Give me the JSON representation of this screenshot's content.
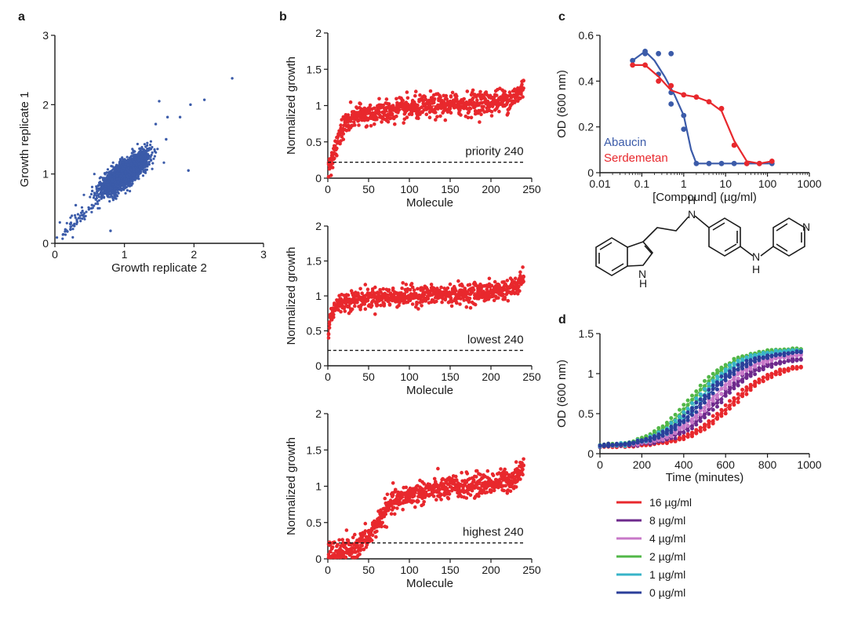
{
  "panels": {
    "a": {
      "letter": "a"
    },
    "b": {
      "letter": "b"
    },
    "c": {
      "letter": "c"
    },
    "d": {
      "letter": "d"
    }
  },
  "colors": {
    "blue": "#3b5ba9",
    "red": "#e8282d",
    "purple": "#6e2a8c",
    "pink": "#c878c8",
    "green": "#52b748",
    "cyan": "#38b4c8",
    "navy": "#2b3f9a"
  },
  "chart_data": [
    {
      "id": "a",
      "type": "scatter",
      "xlabel": "Growth replicate 2",
      "ylabel": "Growth replicate 1",
      "xlim": [
        0,
        3
      ],
      "ylim": [
        0,
        3
      ],
      "xticks": [
        "0",
        "1",
        "2",
        "3"
      ],
      "yticks": [
        "0",
        "1",
        "2",
        "3"
      ],
      "cluster": {
        "center": [
          1.0,
          1.0
        ],
        "spread": 0.14,
        "n": 2600
      },
      "outliers": [
        [
          2.55,
          2.38
        ],
        [
          2.15,
          2.07
        ],
        [
          1.95,
          2.0
        ],
        [
          1.92,
          1.05
        ],
        [
          1.8,
          1.82
        ],
        [
          1.5,
          2.05
        ],
        [
          1.62,
          1.82
        ],
        [
          0.12,
          0.13
        ],
        [
          0.18,
          0.17
        ],
        [
          0.22,
          0.28
        ],
        [
          0.15,
          0.2
        ],
        [
          0.8,
          0.18
        ],
        [
          0.3,
          0.55
        ],
        [
          0.28,
          0.25
        ],
        [
          1.6,
          1.5
        ],
        [
          1.45,
          1.72
        ]
      ],
      "color": "#3b5ba9"
    },
    {
      "id": "b1",
      "type": "scatter",
      "xlabel": "Molecule",
      "ylabel": "Normalized growth",
      "xlim": [
        0,
        250
      ],
      "ylim": [
        0,
        2
      ],
      "xticks": [
        "0",
        "50",
        "100",
        "150",
        "200",
        "250"
      ],
      "yticks": [
        "0",
        "0.5",
        "1",
        "1.5",
        "2"
      ],
      "threshold": 0.22,
      "label": "priority 240",
      "curve": {
        "x": [
          0,
          5,
          10,
          15,
          20,
          25,
          30,
          40,
          50,
          75,
          100,
          125,
          150,
          175,
          200,
          220,
          235,
          240
        ],
        "y": [
          0.1,
          0.2,
          0.45,
          0.62,
          0.72,
          0.78,
          0.82,
          0.86,
          0.88,
          0.92,
          0.96,
          0.99,
          1.01,
          1.03,
          1.05,
          1.08,
          1.15,
          1.3
        ]
      },
      "n_per_x": 3,
      "noise": 0.08,
      "color": "#e8282d"
    },
    {
      "id": "b2",
      "type": "scatter",
      "xlabel": "Molecule",
      "ylabel": "Normalized growth",
      "xlim": [
        0,
        250
      ],
      "ylim": [
        0,
        2
      ],
      "xticks": [
        "0",
        "50",
        "100",
        "150",
        "200",
        "250"
      ],
      "yticks": [
        "0",
        "0.5",
        "1",
        "1.5",
        "2"
      ],
      "threshold": 0.22,
      "label": "lowest 240",
      "curve": {
        "x": [
          0,
          2,
          5,
          10,
          20,
          50,
          100,
          150,
          200,
          230,
          240
        ],
        "y": [
          0.3,
          0.6,
          0.78,
          0.86,
          0.92,
          0.97,
          1.0,
          1.02,
          1.06,
          1.12,
          1.25
        ]
      },
      "n_per_x": 3,
      "noise": 0.07,
      "color": "#e8282d"
    },
    {
      "id": "b3",
      "type": "scatter",
      "xlabel": "Molecule",
      "ylabel": "Normalized growth",
      "xlim": [
        0,
        250
      ],
      "ylim": [
        0,
        2
      ],
      "xticks": [
        "0",
        "50",
        "100",
        "150",
        "200",
        "250"
      ],
      "yticks": [
        "0",
        "0.5",
        "1",
        "1.5",
        "2"
      ],
      "threshold": 0.22,
      "label": "highest 240",
      "curve": {
        "x": [
          0,
          20,
          30,
          40,
          50,
          60,
          70,
          80,
          100,
          125,
          150,
          175,
          200,
          225,
          240
        ],
        "y": [
          0.08,
          0.1,
          0.13,
          0.2,
          0.3,
          0.48,
          0.65,
          0.78,
          0.88,
          0.94,
          0.98,
          1.01,
          1.04,
          1.09,
          1.25
        ]
      },
      "n_per_x": 3,
      "noise": 0.08,
      "color": "#e8282d"
    },
    {
      "id": "c",
      "type": "line",
      "xscale": "log",
      "xlabel": "[Compound] (µg/ml)",
      "ylabel": "OD (600 nm)",
      "xlim": [
        0.01,
        1000
      ],
      "ylim": [
        0,
        0.6
      ],
      "xticks": [
        "0.01",
        "0.1",
        "1",
        "10",
        "100",
        "1000"
      ],
      "yticks": [
        "0",
        "0.2",
        "0.4",
        "0.6"
      ],
      "series": [
        {
          "name": "Abaucin",
          "color": "#3b5ba9",
          "points": [
            [
              0.06,
              0.49
            ],
            [
              0.12,
              0.53
            ],
            [
              0.12,
              0.52
            ],
            [
              0.25,
              0.52
            ],
            [
              0.5,
              0.52
            ],
            [
              0.25,
              0.43
            ],
            [
              0.5,
              0.35
            ],
            [
              0.5,
              0.3
            ],
            [
              1.0,
              0.25
            ],
            [
              1.0,
              0.19
            ],
            [
              2.0,
              0.04
            ],
            [
              4.0,
              0.04
            ],
            [
              8.0,
              0.04
            ],
            [
              16.0,
              0.04
            ],
            [
              32.0,
              0.04
            ],
            [
              64.0,
              0.04
            ],
            [
              128.0,
              0.04
            ]
          ],
          "fit": [
            [
              0.06,
              0.49
            ],
            [
              0.12,
              0.53
            ],
            [
              0.2,
              0.49
            ],
            [
              0.35,
              0.42
            ],
            [
              0.6,
              0.34
            ],
            [
              1.0,
              0.25
            ],
            [
              1.5,
              0.1
            ],
            [
              2.0,
              0.04
            ],
            [
              128.0,
              0.04
            ]
          ]
        },
        {
          "name": "Serdemetan",
          "color": "#e8282d",
          "points": [
            [
              0.06,
              0.47
            ],
            [
              0.12,
              0.47
            ],
            [
              0.25,
              0.4
            ],
            [
              0.5,
              0.38
            ],
            [
              1.0,
              0.34
            ],
            [
              2.0,
              0.33
            ],
            [
              4.0,
              0.31
            ],
            [
              8.0,
              0.28
            ],
            [
              16.0,
              0.12
            ],
            [
              32.0,
              0.04
            ],
            [
              64.0,
              0.04
            ],
            [
              128.0,
              0.05
            ]
          ],
          "fit": [
            [
              0.06,
              0.47
            ],
            [
              0.12,
              0.47
            ],
            [
              0.25,
              0.42
            ],
            [
              0.5,
              0.36
            ],
            [
              1.0,
              0.34
            ],
            [
              2.0,
              0.33
            ],
            [
              4.0,
              0.31
            ],
            [
              8.0,
              0.27
            ],
            [
              16.0,
              0.14
            ],
            [
              32.0,
              0.05
            ],
            [
              64.0,
              0.04
            ],
            [
              128.0,
              0.05
            ]
          ]
        }
      ]
    },
    {
      "id": "d",
      "type": "scatter",
      "xlabel": "Time (minutes)",
      "ylabel": "OD (600 nm)",
      "xlim": [
        0,
        1000
      ],
      "ylim": [
        0,
        1.5
      ],
      "xticks": [
        "0",
        "200",
        "400",
        "600",
        "800",
        "1000"
      ],
      "yticks": [
        "0",
        "0.5",
        "1",
        "1.5"
      ],
      "series": [
        {
          "name": "16 µg/ml",
          "color": "#e8282d",
          "plateau": 1.12,
          "midpoint": 620,
          "rate": 0.0095
        },
        {
          "name": "8 µg/ml",
          "color": "#6e2a8c",
          "plateau": 1.2,
          "midpoint": 560,
          "rate": 0.0095
        },
        {
          "name": "4 µg/ml",
          "color": "#c878c8",
          "plateau": 1.25,
          "midpoint": 530,
          "rate": 0.0095
        },
        {
          "name": "2 µg/ml",
          "color": "#52b748",
          "plateau": 1.31,
          "midpoint": 450,
          "rate": 0.01
        },
        {
          "name": "1 µg/ml",
          "color": "#38b4c8",
          "plateau": 1.3,
          "midpoint": 480,
          "rate": 0.01
        },
        {
          "name": "0 µg/ml",
          "color": "#2b3f9a",
          "plateau": 1.28,
          "midpoint": 500,
          "rate": 0.0095
        }
      ]
    }
  ]
}
